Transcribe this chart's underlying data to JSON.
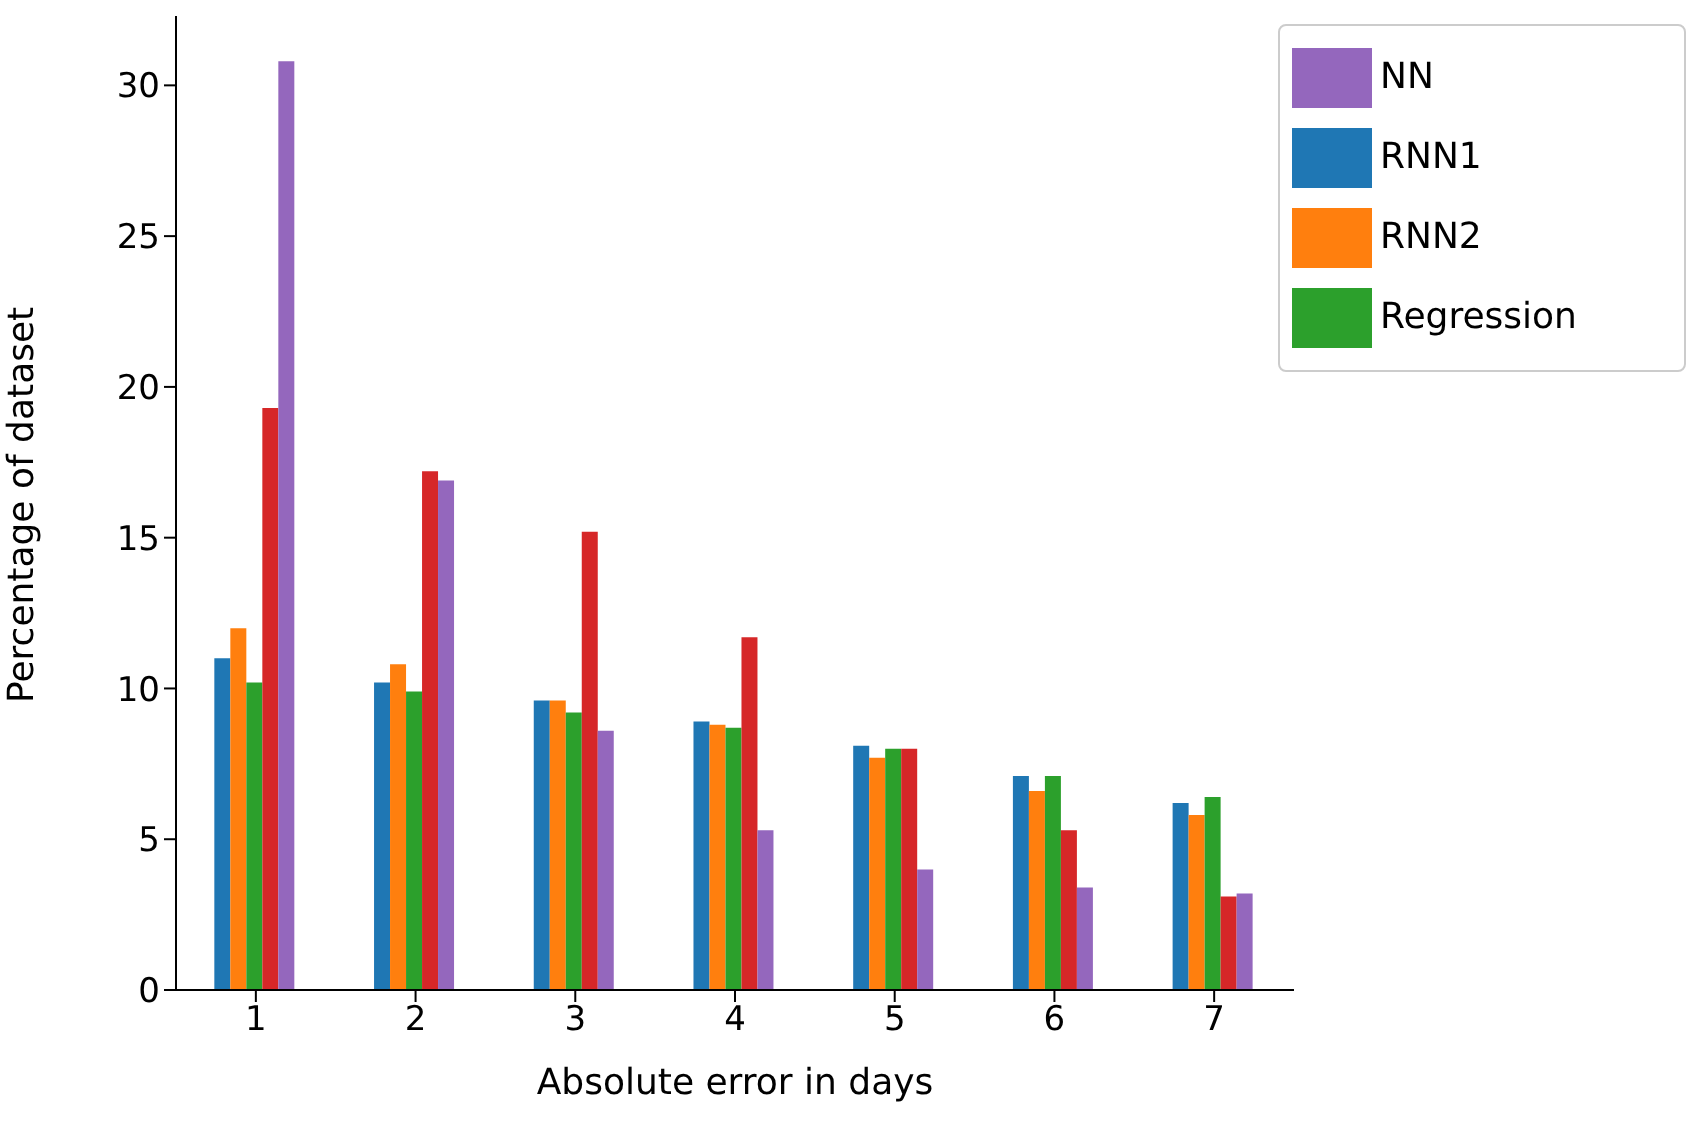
{
  "chart_data": {
    "type": "bar",
    "xlabel": "Absolute error in days",
    "ylabel": "Percentage of dataset",
    "categories": [
      "1",
      "2",
      "3",
      "4",
      "5",
      "6",
      "7"
    ],
    "series": [
      {
        "name": "RNN1",
        "color": "#1f77b4",
        "values": [
          11.0,
          10.2,
          9.6,
          8.9,
          8.1,
          7.1,
          6.2
        ]
      },
      {
        "name": "RNN2",
        "color": "#ff7f0e",
        "values": [
          12.0,
          10.8,
          9.6,
          8.8,
          7.7,
          6.6,
          5.8
        ]
      },
      {
        "name": "Regression",
        "color": "#2ca02c",
        "values": [
          10.2,
          9.9,
          9.2,
          8.7,
          8.0,
          7.1,
          6.4
        ]
      },
      {
        "color": "#d62728",
        "values": [
          19.3,
          17.2,
          15.2,
          11.7,
          8.0,
          5.3,
          3.1
        ]
      },
      {
        "name": "NN",
        "color": "#9467bd",
        "values": [
          30.8,
          16.9,
          8.6,
          5.3,
          4.0,
          3.4,
          3.2
        ]
      }
    ],
    "ylim": [
      0,
      32.3
    ],
    "yticks": [
      0,
      5,
      10,
      15,
      20,
      25,
      30
    ],
    "grid": false,
    "legend": "top right"
  }
}
